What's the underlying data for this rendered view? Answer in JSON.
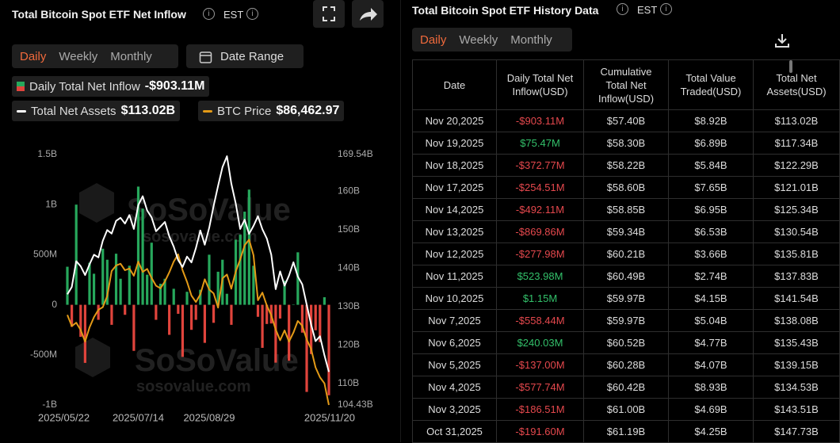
{
  "header": {
    "title": "Total Bitcoin Spot ETF Net Inflow",
    "timezone": "EST",
    "tabs": [
      "Daily",
      "Weekly",
      "Monthly"
    ],
    "date_range": "Date Range"
  },
  "watermark": {
    "brand": "SoSoValue",
    "site": "sosovalue.com"
  },
  "chart_data": {
    "type": "bar",
    "grid": false,
    "categories": [
      "2025/05/22",
      null,
      null,
      null,
      null,
      null,
      null,
      null,
      null,
      null,
      null,
      null,
      null,
      null,
      null,
      null,
      "2025/07/14",
      null,
      null,
      null,
      null,
      null,
      null,
      null,
      null,
      null,
      null,
      null,
      null,
      null,
      null,
      null,
      "2025/08/29",
      null,
      null,
      null,
      null,
      null,
      null,
      null,
      null,
      null,
      null,
      null,
      null,
      null,
      null,
      null,
      null,
      null,
      null,
      null,
      null,
      null,
      null,
      null,
      null,
      null,
      null,
      "2025/11/20"
    ],
    "ylim": [
      -1000,
      1500
    ],
    "yticks": [
      {
        "value": 1500,
        "label": "1.5B"
      },
      {
        "value": 1000,
        "label": "1B"
      },
      {
        "value": 500,
        "label": "500M"
      },
      0,
      {
        "value": -500,
        "label": "-500M"
      },
      {
        "value": -1000,
        "label": "-1B"
      }
    ],
    "y2lim": [
      104.43,
      169.54
    ],
    "y2ticks": [
      {
        "value": 169.54,
        "label": "169.54B"
      },
      {
        "value": 160,
        "label": "160B"
      },
      {
        "value": 150,
        "label": "150B"
      },
      {
        "value": 140,
        "label": "140B"
      },
      {
        "value": 130,
        "label": "130B"
      },
      {
        "value": 120,
        "label": "120B"
      },
      {
        "value": 110,
        "label": "110B"
      },
      {
        "value": 104.43,
        "label": "104.43B"
      }
    ],
    "series": [
      {
        "name": "Daily Total Net Inflow",
        "type": "bar",
        "color": "#27a85c",
        "negative_color": "#e0443c",
        "legend_value": "-$903.11M",
        "values": [
          380,
          -220,
          1000,
          -320,
          -580,
          420,
          310,
          -150,
          560,
          450,
          -200,
          510,
          260,
          -100,
          390,
          -460,
          1180,
          960,
          300,
          620,
          -150,
          210,
          260,
          -300,
          160,
          -90,
          -520,
          130,
          -250,
          -150,
          150,
          -380,
          500,
          -180,
          330,
          450,
          110,
          -200,
          650,
          700,
          930,
          1150,
          390,
          -120,
          -430,
          -191.6,
          -186.51,
          -577.74,
          -137.0,
          240.03,
          -558.44,
          1.15,
          523.98,
          -277.98,
          -869.86,
          -492.11,
          -254.51,
          -372.77,
          75.47,
          -903.11
        ]
      },
      {
        "name": "Total Net Assets",
        "type": "line",
        "axis": "y2",
        "color": "#ffffff",
        "legend_value": "$113.02B",
        "values": [
          133.2,
          135.1,
          141.8,
          140.5,
          138.2,
          141.0,
          143.5,
          142.8,
          147.1,
          149.9,
          149.0,
          152.3,
          153.1,
          151.6,
          153.8,
          150.2,
          156.4,
          158.7,
          155.0,
          153.2,
          149.6,
          150.8,
          152.0,
          148.3,
          145.6,
          142.1,
          140.3,
          143.0,
          141.5,
          145.2,
          149.8,
          146.1,
          150.5,
          156.2,
          161.4,
          166.3,
          169.1,
          162.0,
          156.8,
          150.2,
          152.6,
          148.9,
          151.0,
          153.5,
          150.1,
          147.73,
          143.51,
          134.53,
          139.15,
          135.43,
          138.08,
          141.54,
          137.83,
          135.81,
          130.54,
          125.34,
          121.01,
          122.29,
          117.34,
          113.02
        ]
      },
      {
        "name": "BTC Price",
        "type": "line",
        "axis": "hidden",
        "color": "#e39a17",
        "legend_value": "$86,462.97",
        "values": [
          107400,
          104800,
          105600,
          103900,
          101200,
          104500,
          106900,
          108600,
          109200,
          111800,
          117600,
          118900,
          119300,
          117800,
          118200,
          116500,
          119800,
          117400,
          118100,
          116000,
          114200,
          113600,
          115200,
          117300,
          119800,
          121500,
          117800,
          115100,
          111900,
          110400,
          112200,
          115700,
          113300,
          112400,
          109100,
          115900,
          116800,
          113500,
          117500,
          120300,
          123600,
          124900,
          121300,
          110800,
          112600,
          109600,
          107300,
          104000,
          101500,
          103800,
          101200,
          103300,
          106000,
          104900,
          101700,
          99500,
          95200,
          92900,
          91500,
          86462.97
        ]
      }
    ]
  },
  "history": {
    "title": "Total Bitcoin Spot ETF History Data",
    "timezone": "EST",
    "tabs": [
      "Daily",
      "Weekly",
      "Monthly"
    ],
    "columns": [
      "Date",
      "Daily Total Net Inflow(USD)",
      "Cumulative Total Net Inflow(USD)",
      "Total Value Traded(USD)",
      "Total Net Assets(USD)"
    ],
    "rows": [
      [
        "Nov 20,2025",
        "-$903.11M",
        "$57.40B",
        "$8.92B",
        "$113.02B"
      ],
      [
        "Nov 19,2025",
        "$75.47M",
        "$58.30B",
        "$6.89B",
        "$117.34B"
      ],
      [
        "Nov 18,2025",
        "-$372.77M",
        "$58.22B",
        "$5.84B",
        "$122.29B"
      ],
      [
        "Nov 17,2025",
        "-$254.51M",
        "$58.60B",
        "$7.65B",
        "$121.01B"
      ],
      [
        "Nov 14,2025",
        "-$492.11M",
        "$58.85B",
        "$6.95B",
        "$125.34B"
      ],
      [
        "Nov 13,2025",
        "-$869.86M",
        "$59.34B",
        "$6.53B",
        "$130.54B"
      ],
      [
        "Nov 12,2025",
        "-$277.98M",
        "$60.21B",
        "$3.66B",
        "$135.81B"
      ],
      [
        "Nov 11,2025",
        "$523.98M",
        "$60.49B",
        "$2.74B",
        "$137.83B"
      ],
      [
        "Nov 10,2025",
        "$1.15M",
        "$59.97B",
        "$4.15B",
        "$141.54B"
      ],
      [
        "Nov 7,2025",
        "-$558.44M",
        "$59.97B",
        "$5.04B",
        "$138.08B"
      ],
      [
        "Nov 6,2025",
        "$240.03M",
        "$60.52B",
        "$4.77B",
        "$135.43B"
      ],
      [
        "Nov 5,2025",
        "-$137.00M",
        "$60.28B",
        "$4.07B",
        "$139.15B"
      ],
      [
        "Nov 4,2025",
        "-$577.74M",
        "$60.42B",
        "$8.93B",
        "$134.53B"
      ],
      [
        "Nov 3,2025",
        "-$186.51M",
        "$61.00B",
        "$4.69B",
        "$143.51B"
      ],
      [
        "Oct 31,2025",
        "-$191.60M",
        "$61.19B",
        "$4.25B",
        "$147.73B"
      ]
    ]
  }
}
